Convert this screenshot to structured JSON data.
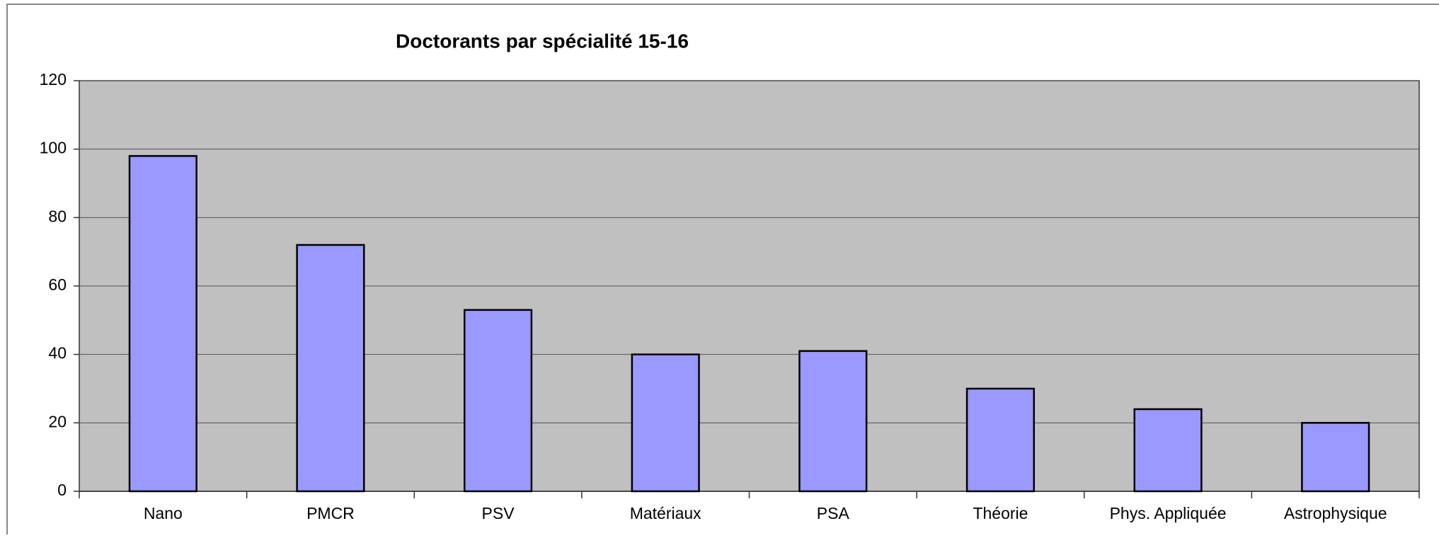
{
  "chart_data": {
    "type": "bar",
    "title": "Doctorants par spécialité 15-16",
    "categories": [
      "Nano",
      "PMCR",
      "PSV",
      "Matériaux",
      "PSA",
      "Théorie",
      "Phys. Appliquée",
      "Astrophysique"
    ],
    "values": [
      98,
      72,
      53,
      40,
      41,
      30,
      24,
      20
    ],
    "color": "#9999ff",
    "ylim": [
      0,
      120
    ],
    "yticks": [
      0,
      20,
      40,
      60,
      80,
      100,
      120
    ],
    "grid": true
  }
}
